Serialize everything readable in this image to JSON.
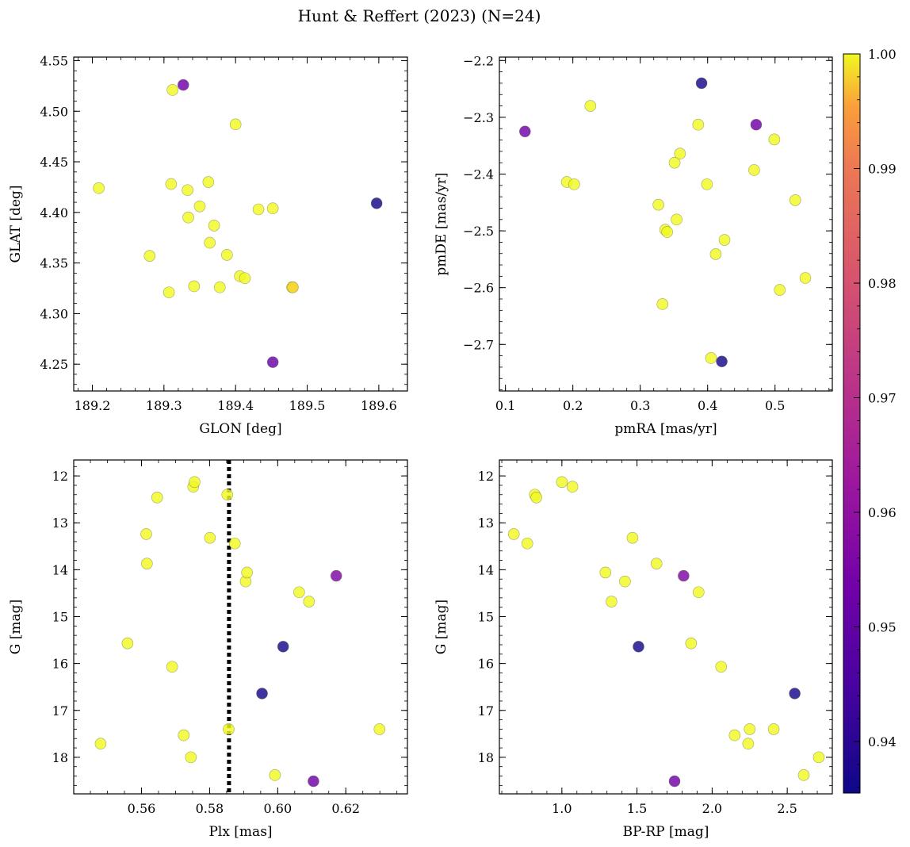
{
  "figure_title": "Hunt & Reffert (2023) (N=24)",
  "colorbar": {
    "min": 0.9355,
    "max": 1.0,
    "ticks": [
      "0.94",
      "0.95",
      "0.96",
      "0.97",
      "0.98",
      "0.99",
      "1.00"
    ],
    "tick_values": [
      0.94,
      0.95,
      0.96,
      0.97,
      0.98,
      0.99,
      1.0
    ],
    "colormap": "plasma"
  },
  "chart_data": [
    {
      "type": "scatter",
      "id": "sky",
      "xlabel": "GLON [deg]",
      "ylabel": "GLAT [deg]",
      "xlim": [
        189.174,
        189.64
      ],
      "ylim": [
        4.2235,
        4.5535
      ],
      "xticks": [
        "189.2",
        "189.3",
        "189.4",
        "189.5",
        "189.6"
      ],
      "xtick_values": [
        189.2,
        189.3,
        189.4,
        189.5,
        189.6
      ],
      "yticks": [
        "4.25",
        "4.30",
        "4.35",
        "4.40",
        "4.45",
        "4.50",
        "4.55"
      ],
      "ytick_values": [
        4.25,
        4.3,
        4.35,
        4.4,
        4.45,
        4.5,
        4.55
      ],
      "points": [
        {
          "x": 189.209,
          "y": 4.424,
          "c": 1.0
        },
        {
          "x": 189.28,
          "y": 4.357,
          "c": 1.0
        },
        {
          "x": 189.307,
          "y": 4.321,
          "c": 1.0
        },
        {
          "x": 189.31,
          "y": 4.428,
          "c": 1.0
        },
        {
          "x": 189.312,
          "y": 4.521,
          "c": 1.0
        },
        {
          "x": 189.327,
          "y": 4.526,
          "c": 0.953
        },
        {
          "x": 189.333,
          "y": 4.422,
          "c": 1.0
        },
        {
          "x": 189.334,
          "y": 4.395,
          "c": 1.0
        },
        {
          "x": 189.342,
          "y": 4.327,
          "c": 1.0
        },
        {
          "x": 189.35,
          "y": 4.406,
          "c": 1.0
        },
        {
          "x": 189.362,
          "y": 4.43,
          "c": 1.0
        },
        {
          "x": 189.364,
          "y": 4.37,
          "c": 1.0
        },
        {
          "x": 189.37,
          "y": 4.387,
          "c": 1.0
        },
        {
          "x": 189.378,
          "y": 4.326,
          "c": 1.0
        },
        {
          "x": 189.388,
          "y": 4.358,
          "c": 1.0
        },
        {
          "x": 189.4,
          "y": 4.487,
          "c": 1.0
        },
        {
          "x": 189.406,
          "y": 4.337,
          "c": 1.0
        },
        {
          "x": 189.413,
          "y": 4.335,
          "c": 1.0
        },
        {
          "x": 189.432,
          "y": 4.403,
          "c": 1.0
        },
        {
          "x": 189.452,
          "y": 4.404,
          "c": 1.0
        },
        {
          "x": 189.452,
          "y": 4.252,
          "c": 0.952
        },
        {
          "x": 189.479,
          "y": 4.326,
          "c": 1.0
        },
        {
          "x": 189.48,
          "y": 4.326,
          "c": 0.998
        },
        {
          "x": 189.597,
          "y": 4.409,
          "c": 0.937
        }
      ]
    },
    {
      "type": "scatter",
      "id": "pm",
      "xlabel": "pmRA [mas/yr]",
      "ylabel": "pmDE [mas/yr]",
      "xlim": [
        0.091,
        0.585
      ],
      "ylim": [
        -2.782,
        -2.194
      ],
      "xticks": [
        "0.1",
        "0.2",
        "0.3",
        "0.4",
        "0.5"
      ],
      "xtick_values": [
        0.1,
        0.2,
        0.3,
        0.4,
        0.5
      ],
      "yticks": [
        "−2.7",
        "−2.6",
        "−2.5",
        "−2.4",
        "−2.3",
        "−2.2"
      ],
      "ytick_values": [
        -2.7,
        -2.6,
        -2.5,
        -2.4,
        -2.3,
        -2.2
      ],
      "points": [
        {
          "x": 0.129,
          "y": -2.325,
          "c": 0.953
        },
        {
          "x": 0.191,
          "y": -2.414,
          "c": 1.0
        },
        {
          "x": 0.202,
          "y": -2.418,
          "c": 1.0
        },
        {
          "x": 0.226,
          "y": -2.28,
          "c": 1.0
        },
        {
          "x": 0.327,
          "y": -2.454,
          "c": 1.0
        },
        {
          "x": 0.333,
          "y": -2.629,
          "c": 1.0
        },
        {
          "x": 0.337,
          "y": -2.498,
          "c": 1.0
        },
        {
          "x": 0.34,
          "y": -2.502,
          "c": 1.0
        },
        {
          "x": 0.351,
          "y": -2.38,
          "c": 1.0
        },
        {
          "x": 0.354,
          "y": -2.48,
          "c": 1.0
        },
        {
          "x": 0.359,
          "y": -2.364,
          "c": 1.0
        },
        {
          "x": 0.386,
          "y": -2.313,
          "c": 1.0
        },
        {
          "x": 0.391,
          "y": -2.24,
          "c": 0.937
        },
        {
          "x": 0.399,
          "y": -2.418,
          "c": 1.0
        },
        {
          "x": 0.405,
          "y": -2.724,
          "c": 1.0
        },
        {
          "x": 0.412,
          "y": -2.541,
          "c": 1.0
        },
        {
          "x": 0.421,
          "y": -2.73,
          "c": 0.937
        },
        {
          "x": 0.425,
          "y": -2.516,
          "c": 1.0
        },
        {
          "x": 0.469,
          "y": -2.393,
          "c": 1.0
        },
        {
          "x": 0.472,
          "y": -2.313,
          "c": 0.953
        },
        {
          "x": 0.499,
          "y": -2.339,
          "c": 1.0
        },
        {
          "x": 0.507,
          "y": -2.604,
          "c": 1.0
        },
        {
          "x": 0.53,
          "y": -2.446,
          "c": 1.0
        },
        {
          "x": 0.545,
          "y": -2.583,
          "c": 1.0
        }
      ]
    },
    {
      "type": "scatter",
      "id": "plx",
      "xlabel": "Plx [mas]",
      "ylabel": "G [mag]",
      "xlim": [
        0.5401,
        0.6381
      ],
      "ylim": [
        18.78,
        11.66
      ],
      "xticks": [
        "0.56",
        "0.58",
        "0.60",
        "0.62"
      ],
      "xtick_values": [
        0.56,
        0.58,
        0.6,
        0.62
      ],
      "yticks": [
        "12",
        "13",
        "14",
        "15",
        "16",
        "17",
        "18"
      ],
      "ytick_values": [
        12,
        13,
        14,
        15,
        16,
        17,
        18
      ],
      "vline": {
        "x": 0.5857,
        "style": "dotted"
      },
      "points": [
        {
          "x": 0.548,
          "y": 17.71,
          "c": 1.0
        },
        {
          "x": 0.5559,
          "y": 15.57,
          "c": 1.0
        },
        {
          "x": 0.5614,
          "y": 13.24,
          "c": 1.0
        },
        {
          "x": 0.5616,
          "y": 13.87,
          "c": 1.0
        },
        {
          "x": 0.5646,
          "y": 12.46,
          "c": 1.0
        },
        {
          "x": 0.569,
          "y": 16.07,
          "c": 1.0
        },
        {
          "x": 0.5724,
          "y": 17.53,
          "c": 1.0
        },
        {
          "x": 0.5745,
          "y": 18.0,
          "c": 1.0
        },
        {
          "x": 0.5752,
          "y": 12.23,
          "c": 1.0
        },
        {
          "x": 0.5756,
          "y": 12.13,
          "c": 1.0
        },
        {
          "x": 0.5801,
          "y": 13.32,
          "c": 1.0
        },
        {
          "x": 0.5852,
          "y": 12.4,
          "c": 1.0
        },
        {
          "x": 0.5856,
          "y": 17.4,
          "c": 1.0
        },
        {
          "x": 0.5874,
          "y": 13.44,
          "c": 1.0
        },
        {
          "x": 0.5906,
          "y": 14.25,
          "c": 1.0
        },
        {
          "x": 0.591,
          "y": 14.06,
          "c": 1.0
        },
        {
          "x": 0.5954,
          "y": 16.64,
          "c": 0.937
        },
        {
          "x": 0.5992,
          "y": 18.38,
          "c": 1.0
        },
        {
          "x": 0.6016,
          "y": 15.64,
          "c": 0.937
        },
        {
          "x": 0.6063,
          "y": 14.48,
          "c": 1.0
        },
        {
          "x": 0.6092,
          "y": 14.68,
          "c": 1.0
        },
        {
          "x": 0.6105,
          "y": 18.51,
          "c": 0.953
        },
        {
          "x": 0.6172,
          "y": 14.13,
          "c": 0.956
        },
        {
          "x": 0.6299,
          "y": 17.4,
          "c": 1.0
        }
      ]
    },
    {
      "type": "scatter",
      "id": "cmd",
      "xlabel": "BP-RP [mag]",
      "ylabel": "G [mag]",
      "xlim": [
        0.584,
        2.8
      ],
      "ylim": [
        18.78,
        11.66
      ],
      "xticks": [
        "1.0",
        "1.5",
        "2.0",
        "2.5"
      ],
      "xtick_values": [
        1.0,
        1.5,
        2.0,
        2.5
      ],
      "yticks": [
        "12",
        "13",
        "14",
        "15",
        "16",
        "17",
        "18"
      ],
      "ytick_values": [
        12,
        13,
        14,
        15,
        16,
        17,
        18
      ],
      "points": [
        {
          "x": 0.68,
          "y": 13.24,
          "c": 1.0
        },
        {
          "x": 0.77,
          "y": 13.44,
          "c": 1.0
        },
        {
          "x": 0.82,
          "y": 12.4,
          "c": 1.0
        },
        {
          "x": 0.83,
          "y": 12.46,
          "c": 1.0
        },
        {
          "x": 1.0,
          "y": 12.13,
          "c": 1.0
        },
        {
          "x": 1.07,
          "y": 12.23,
          "c": 1.0
        },
        {
          "x": 1.29,
          "y": 14.06,
          "c": 1.0
        },
        {
          "x": 1.33,
          "y": 14.68,
          "c": 1.0
        },
        {
          "x": 1.42,
          "y": 14.25,
          "c": 1.0
        },
        {
          "x": 1.47,
          "y": 13.32,
          "c": 1.0
        },
        {
          "x": 1.51,
          "y": 15.64,
          "c": 0.937
        },
        {
          "x": 1.63,
          "y": 13.87,
          "c": 1.0
        },
        {
          "x": 1.75,
          "y": 18.51,
          "c": 0.953
        },
        {
          "x": 1.81,
          "y": 14.13,
          "c": 0.956
        },
        {
          "x": 1.86,
          "y": 15.57,
          "c": 1.0
        },
        {
          "x": 1.91,
          "y": 14.48,
          "c": 1.0
        },
        {
          "x": 2.06,
          "y": 16.07,
          "c": 1.0
        },
        {
          "x": 2.15,
          "y": 17.53,
          "c": 1.0
        },
        {
          "x": 2.24,
          "y": 17.71,
          "c": 1.0
        },
        {
          "x": 2.25,
          "y": 17.4,
          "c": 1.0
        },
        {
          "x": 2.41,
          "y": 17.4,
          "c": 1.0
        },
        {
          "x": 2.55,
          "y": 16.64,
          "c": 0.937
        },
        {
          "x": 2.61,
          "y": 18.38,
          "c": 1.0
        },
        {
          "x": 2.71,
          "y": 18.0,
          "c": 1.0
        }
      ]
    }
  ]
}
